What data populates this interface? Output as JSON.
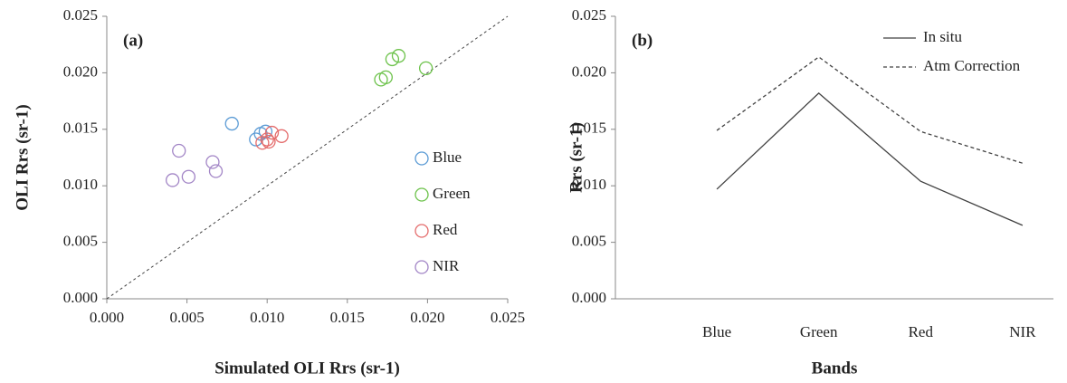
{
  "chart_data": [
    {
      "type": "scatter",
      "annotation": "(a)",
      "xlabel": "Simulated OLI Rrs (sr-1)",
      "ylabel": "OLI Rrs (sr-1)",
      "xlim": [
        0,
        0.025
      ],
      "ylim": [
        0,
        0.025
      ],
      "xticks": [
        {
          "value": 0,
          "label": "0.000"
        },
        {
          "value": 0.005,
          "label": "0.005"
        },
        {
          "value": 0.01,
          "label": "0.010"
        },
        {
          "value": 0.015,
          "label": "0.015"
        },
        {
          "value": 0.02,
          "label": "0.020"
        },
        {
          "value": 0.025,
          "label": "0.025"
        }
      ],
      "yticks": [
        {
          "value": 0,
          "label": "0.000"
        },
        {
          "value": 0.005,
          "label": "0.005"
        },
        {
          "value": 0.01,
          "label": "0.010"
        },
        {
          "value": 0.015,
          "label": "0.015"
        },
        {
          "value": 0.02,
          "label": "0.020"
        },
        {
          "value": 0.025,
          "label": "0.025"
        }
      ],
      "legend": "right",
      "series": [
        {
          "name": "Blue",
          "color": "#5b9bd5",
          "x": [
            0.0078,
            0.0093,
            0.0096,
            0.0099
          ],
          "values": [
            0.0155,
            0.0141,
            0.0146,
            0.0148
          ]
        },
        {
          "name": "Green",
          "color": "#6cc24a",
          "x": [
            0.0171,
            0.0174,
            0.0178,
            0.0182,
            0.0199
          ],
          "values": [
            0.0194,
            0.0196,
            0.0212,
            0.0215,
            0.0204
          ]
        },
        {
          "name": "Red",
          "color": "#e46c6c",
          "x": [
            0.0097,
            0.01,
            0.0103,
            0.0109,
            0.0101
          ],
          "values": [
            0.0138,
            0.0141,
            0.0147,
            0.0144,
            0.0139
          ]
        },
        {
          "name": "NIR",
          "color": "#a285c6",
          "x": [
            0.0041,
            0.0045,
            0.0051,
            0.0066,
            0.0068
          ],
          "values": [
            0.0105,
            0.0131,
            0.0108,
            0.0121,
            0.0113
          ]
        }
      ]
    },
    {
      "type": "line",
      "annotation": "(b)",
      "xlabel": "Bands",
      "ylabel": "Rrs (sr-1)",
      "categories": [
        "Blue",
        "Green",
        "Red",
        "NIR"
      ],
      "ylim": [
        0,
        0.025
      ],
      "yticks": [
        {
          "value": 0,
          "label": "0.000"
        },
        {
          "value": 0.005,
          "label": "0.005"
        },
        {
          "value": 0.01,
          "label": "0.010"
        },
        {
          "value": 0.015,
          "label": "0.015"
        },
        {
          "value": 0.02,
          "label": "0.020"
        },
        {
          "value": 0.025,
          "label": "0.025"
        }
      ],
      "legend": "top-right",
      "series": [
        {
          "name": "In situ",
          "color": "#404040",
          "style": "solid",
          "values": [
            0.0097,
            0.0182,
            0.0104,
            0.0065
          ]
        },
        {
          "name": "Atm Correction",
          "color": "#404040",
          "style": "dashed",
          "values": [
            0.0149,
            0.0214,
            0.0148,
            0.012
          ]
        }
      ]
    }
  ]
}
